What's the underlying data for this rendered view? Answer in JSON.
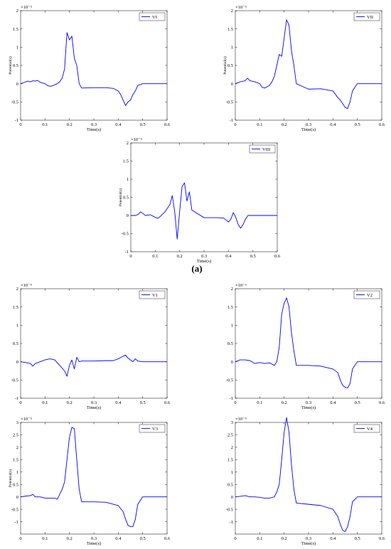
{
  "figure_label": "(a)",
  "chart_data": [
    {
      "type": "line",
      "legend": "VI",
      "legend_position": "top-right",
      "xlabel": "Time(s)",
      "ylabel": "Potential(s)",
      "exponent_label": "×10⁻⁵",
      "xlim": [
        0,
        0.6
      ],
      "ylim": [
        -1,
        2
      ],
      "xticks": [
        "0",
        "0.1",
        "0.2",
        "0.3",
        "0.4",
        "0.5",
        "0.6"
      ],
      "yticks": [
        "-1",
        "-0.5",
        "0",
        "0.5",
        "1",
        "1.5",
        "2"
      ],
      "color": "#0000ff",
      "grid": false,
      "x": [
        0,
        0.01,
        0.02,
        0.03,
        0.04,
        0.05,
        0.06,
        0.07,
        0.08,
        0.09,
        0.1,
        0.11,
        0.12,
        0.13,
        0.14,
        0.15,
        0.16,
        0.17,
        0.18,
        0.19,
        0.2,
        0.21,
        0.22,
        0.23,
        0.24,
        0.25,
        0.3,
        0.35,
        0.38,
        0.4,
        0.41,
        0.42,
        0.43,
        0.44,
        0.45,
        0.46,
        0.47,
        0.48,
        0.5,
        0.6
      ],
      "y": [
        0,
        0.02,
        0.05,
        0.07,
        0.05,
        0.08,
        0.07,
        0.09,
        0.04,
        0.02,
        0.0,
        -0.05,
        -0.07,
        -0.06,
        -0.03,
        0.0,
        0.05,
        0.15,
        0.4,
        1.4,
        1.2,
        1.3,
        0.7,
        0.5,
        0.0,
        -0.12,
        -0.11,
        -0.11,
        -0.13,
        -0.2,
        -0.3,
        -0.45,
        -0.6,
        -0.5,
        -0.45,
        -0.3,
        -0.2,
        -0.05,
        0,
        0
      ]
    },
    {
      "type": "line",
      "legend": "VII",
      "legend_position": "top-right",
      "xlabel": "Time(s)",
      "ylabel": "Potential(s)",
      "exponent_label": "×10⁻⁵",
      "xlim": [
        0,
        0.6
      ],
      "ylim": [
        -1,
        2
      ],
      "xticks": [
        "0",
        "0.1",
        "0.2",
        "0.3",
        "0.4",
        "0.5",
        "0.6"
      ],
      "yticks": [
        "-1",
        "-0.5",
        "0",
        "0.5",
        "1",
        "1.5",
        "2"
      ],
      "color": "#0000ff",
      "grid": false,
      "x": [
        0,
        0.02,
        0.04,
        0.05,
        0.06,
        0.08,
        0.1,
        0.11,
        0.12,
        0.14,
        0.15,
        0.16,
        0.17,
        0.18,
        0.19,
        0.2,
        0.21,
        0.22,
        0.23,
        0.24,
        0.25,
        0.3,
        0.35,
        0.4,
        0.42,
        0.43,
        0.44,
        0.45,
        0.46,
        0.47,
        0.48,
        0.5,
        0.6
      ],
      "y": [
        0,
        0.05,
        0.08,
        0.15,
        0.08,
        0.05,
        0.0,
        -0.1,
        -0.12,
        -0.05,
        0.05,
        0.2,
        0.5,
        0.8,
        0.75,
        1.25,
        1.75,
        1.6,
        0.9,
        0.5,
        0.0,
        -0.15,
        -0.14,
        -0.2,
        -0.38,
        -0.45,
        -0.55,
        -0.65,
        -0.68,
        -0.5,
        -0.2,
        0,
        0
      ]
    },
    {
      "type": "line",
      "legend": "VIII",
      "legend_position": "top-right",
      "xlabel": "Time(s)",
      "ylabel": "Potential(s)",
      "exponent_label": "×10⁻⁵",
      "xlim": [
        0,
        0.6
      ],
      "ylim": [
        -1,
        2
      ],
      "xticks": [
        "0",
        "0.1",
        "0.2",
        "0.3",
        "0.4",
        "0.5",
        "0.6"
      ],
      "yticks": [
        "-1",
        "-0.5",
        "0",
        "0.5",
        "1",
        "1.5",
        "2"
      ],
      "color": "#0000ff",
      "grid": false,
      "x": [
        0,
        0.02,
        0.03,
        0.04,
        0.05,
        0.06,
        0.08,
        0.1,
        0.11,
        0.12,
        0.14,
        0.16,
        0.17,
        0.18,
        0.19,
        0.2,
        0.21,
        0.22,
        0.23,
        0.24,
        0.25,
        0.3,
        0.35,
        0.38,
        0.4,
        0.41,
        0.42,
        0.43,
        0.44,
        0.45,
        0.46,
        0.47,
        0.48,
        0.5,
        0.6
      ],
      "y": [
        0,
        0.0,
        0.03,
        0.1,
        0.05,
        0.0,
        0.02,
        -0.05,
        -0.08,
        -0.03,
        0.1,
        0.3,
        0.55,
        0.1,
        -0.65,
        0.1,
        0.8,
        0.9,
        0.4,
        0.65,
        0.15,
        -0.06,
        -0.06,
        -0.07,
        -0.18,
        -0.1,
        0.08,
        -0.05,
        -0.25,
        -0.35,
        -0.25,
        -0.1,
        0.0,
        0,
        0
      ]
    },
    {
      "type": "line",
      "legend": "V1",
      "legend_position": "top-right",
      "xlabel": "Time(s)",
      "ylabel": "",
      "exponent_label": "×10⁻⁵",
      "xlim": [
        0,
        0.6
      ],
      "ylim": [
        -1,
        2
      ],
      "xticks": [
        "0",
        "0.1",
        "0.2",
        "0.3",
        "0.4",
        "0.5",
        "0.6"
      ],
      "yticks": [
        "-1",
        "-0.5",
        "0",
        "0.5",
        "1",
        "1.5",
        "2"
      ],
      "color": "#0000ff",
      "grid": false,
      "x": [
        0,
        0.02,
        0.04,
        0.05,
        0.06,
        0.08,
        0.1,
        0.12,
        0.14,
        0.16,
        0.18,
        0.19,
        0.2,
        0.21,
        0.22,
        0.23,
        0.24,
        0.25,
        0.3,
        0.35,
        0.38,
        0.4,
        0.42,
        0.43,
        0.44,
        0.46,
        0.47,
        0.48,
        0.5,
        0.6
      ],
      "y": [
        0,
        -0.02,
        -0.05,
        -0.12,
        -0.05,
        0.0,
        0.05,
        0.08,
        0.05,
        -0.1,
        -0.25,
        -0.4,
        -0.1,
        0.05,
        -0.2,
        0.12,
        0.0,
        0.02,
        0.02,
        0.03,
        0.03,
        0.08,
        0.15,
        0.18,
        0.1,
        0.0,
        0.08,
        0.02,
        0,
        0
      ]
    },
    {
      "type": "line",
      "legend": "V2",
      "legend_position": "top-right",
      "xlabel": "Time(s)",
      "ylabel": "",
      "exponent_label": "×10⁻⁵",
      "xlim": [
        0,
        0.6
      ],
      "ylim": [
        -1,
        2
      ],
      "xticks": [
        "0",
        "0.1",
        "0.2",
        "0.3",
        "0.4",
        "0.5",
        "0.6"
      ],
      "yticks": [
        "-1",
        "-0.5",
        "0",
        "0.5",
        "1",
        "1.5",
        "2"
      ],
      "color": "#0000ff",
      "grid": false,
      "x": [
        0,
        0.02,
        0.04,
        0.06,
        0.08,
        0.1,
        0.12,
        0.14,
        0.16,
        0.17,
        0.18,
        0.19,
        0.2,
        0.21,
        0.22,
        0.23,
        0.24,
        0.25,
        0.3,
        0.35,
        0.4,
        0.42,
        0.43,
        0.44,
        0.45,
        0.46,
        0.47,
        0.48,
        0.5,
        0.6
      ],
      "y": [
        0,
        0.05,
        0.05,
        0.03,
        -0.05,
        -0.02,
        -0.05,
        -0.03,
        -0.1,
        0.0,
        0.4,
        1.3,
        1.6,
        1.75,
        1.5,
        0.8,
        0.3,
        -0.1,
        -0.1,
        -0.12,
        -0.2,
        -0.3,
        -0.5,
        -0.65,
        -0.7,
        -0.72,
        -0.6,
        -0.2,
        0,
        0
      ]
    },
    {
      "type": "line",
      "legend": "V3",
      "legend_position": "top-right",
      "xlabel": "Time(s)",
      "ylabel": "Potential(s)",
      "exponent_label": "×10⁻⁵",
      "xlim": [
        0,
        0.6
      ],
      "ylim": [
        -1.5,
        3
      ],
      "xticks": [
        "0",
        "0.1",
        "0.2",
        "0.3",
        "0.4",
        "0.5",
        "0.6"
      ],
      "yticks": [
        "-1",
        "-0.5",
        "0",
        "0.5",
        "1",
        "1.5",
        "2",
        "2.5",
        "3"
      ],
      "color": "#0000ff",
      "grid": false,
      "x": [
        0,
        0.02,
        0.04,
        0.05,
        0.06,
        0.08,
        0.1,
        0.12,
        0.14,
        0.15,
        0.16,
        0.17,
        0.18,
        0.19,
        0.2,
        0.21,
        0.22,
        0.23,
        0.24,
        0.25,
        0.3,
        0.35,
        0.4,
        0.42,
        0.43,
        0.44,
        0.45,
        0.46,
        0.47,
        0.48,
        0.5,
        0.6
      ],
      "y": [
        0,
        0.03,
        0.05,
        0.1,
        0.0,
        0.0,
        -0.05,
        -0.05,
        -0.05,
        -0.1,
        0.1,
        0.3,
        0.6,
        1.5,
        2.4,
        2.8,
        2.75,
        1.5,
        0.3,
        -0.2,
        -0.2,
        -0.22,
        -0.35,
        -0.6,
        -0.9,
        -1.15,
        -1.2,
        -1.2,
        -0.9,
        -0.3,
        0,
        0
      ]
    },
    {
      "type": "line",
      "legend": "V4",
      "legend_position": "top-right",
      "xlabel": "Time(s)",
      "ylabel": "",
      "exponent_label": "×10⁻⁵",
      "xlim": [
        0,
        0.6
      ],
      "ylim": [
        -1.5,
        3
      ],
      "xticks": [
        "0",
        "0.1",
        "0.2",
        "0.3",
        "0.4",
        "0.5",
        "0.6"
      ],
      "yticks": [
        "-1",
        "-0.5",
        "0",
        "0.5",
        "1",
        "1.5",
        "2",
        "2.5",
        "3"
      ],
      "color": "#0000ff",
      "grid": false,
      "x": [
        0,
        0.02,
        0.04,
        0.06,
        0.08,
        0.1,
        0.12,
        0.14,
        0.16,
        0.17,
        0.18,
        0.19,
        0.2,
        0.21,
        0.22,
        0.23,
        0.24,
        0.25,
        0.3,
        0.35,
        0.4,
        0.42,
        0.43,
        0.44,
        0.45,
        0.46,
        0.47,
        0.48,
        0.5,
        0.6
      ],
      "y": [
        0,
        0.02,
        0.05,
        0.0,
        0.0,
        -0.02,
        -0.05,
        -0.05,
        0.0,
        0.2,
        0.5,
        1.5,
        2.6,
        3.2,
        2.6,
        1.3,
        0.3,
        -0.25,
        -0.3,
        -0.35,
        -0.5,
        -0.8,
        -1.1,
        -1.35,
        -1.4,
        -1.2,
        -0.8,
        -0.2,
        0,
        0
      ]
    }
  ]
}
